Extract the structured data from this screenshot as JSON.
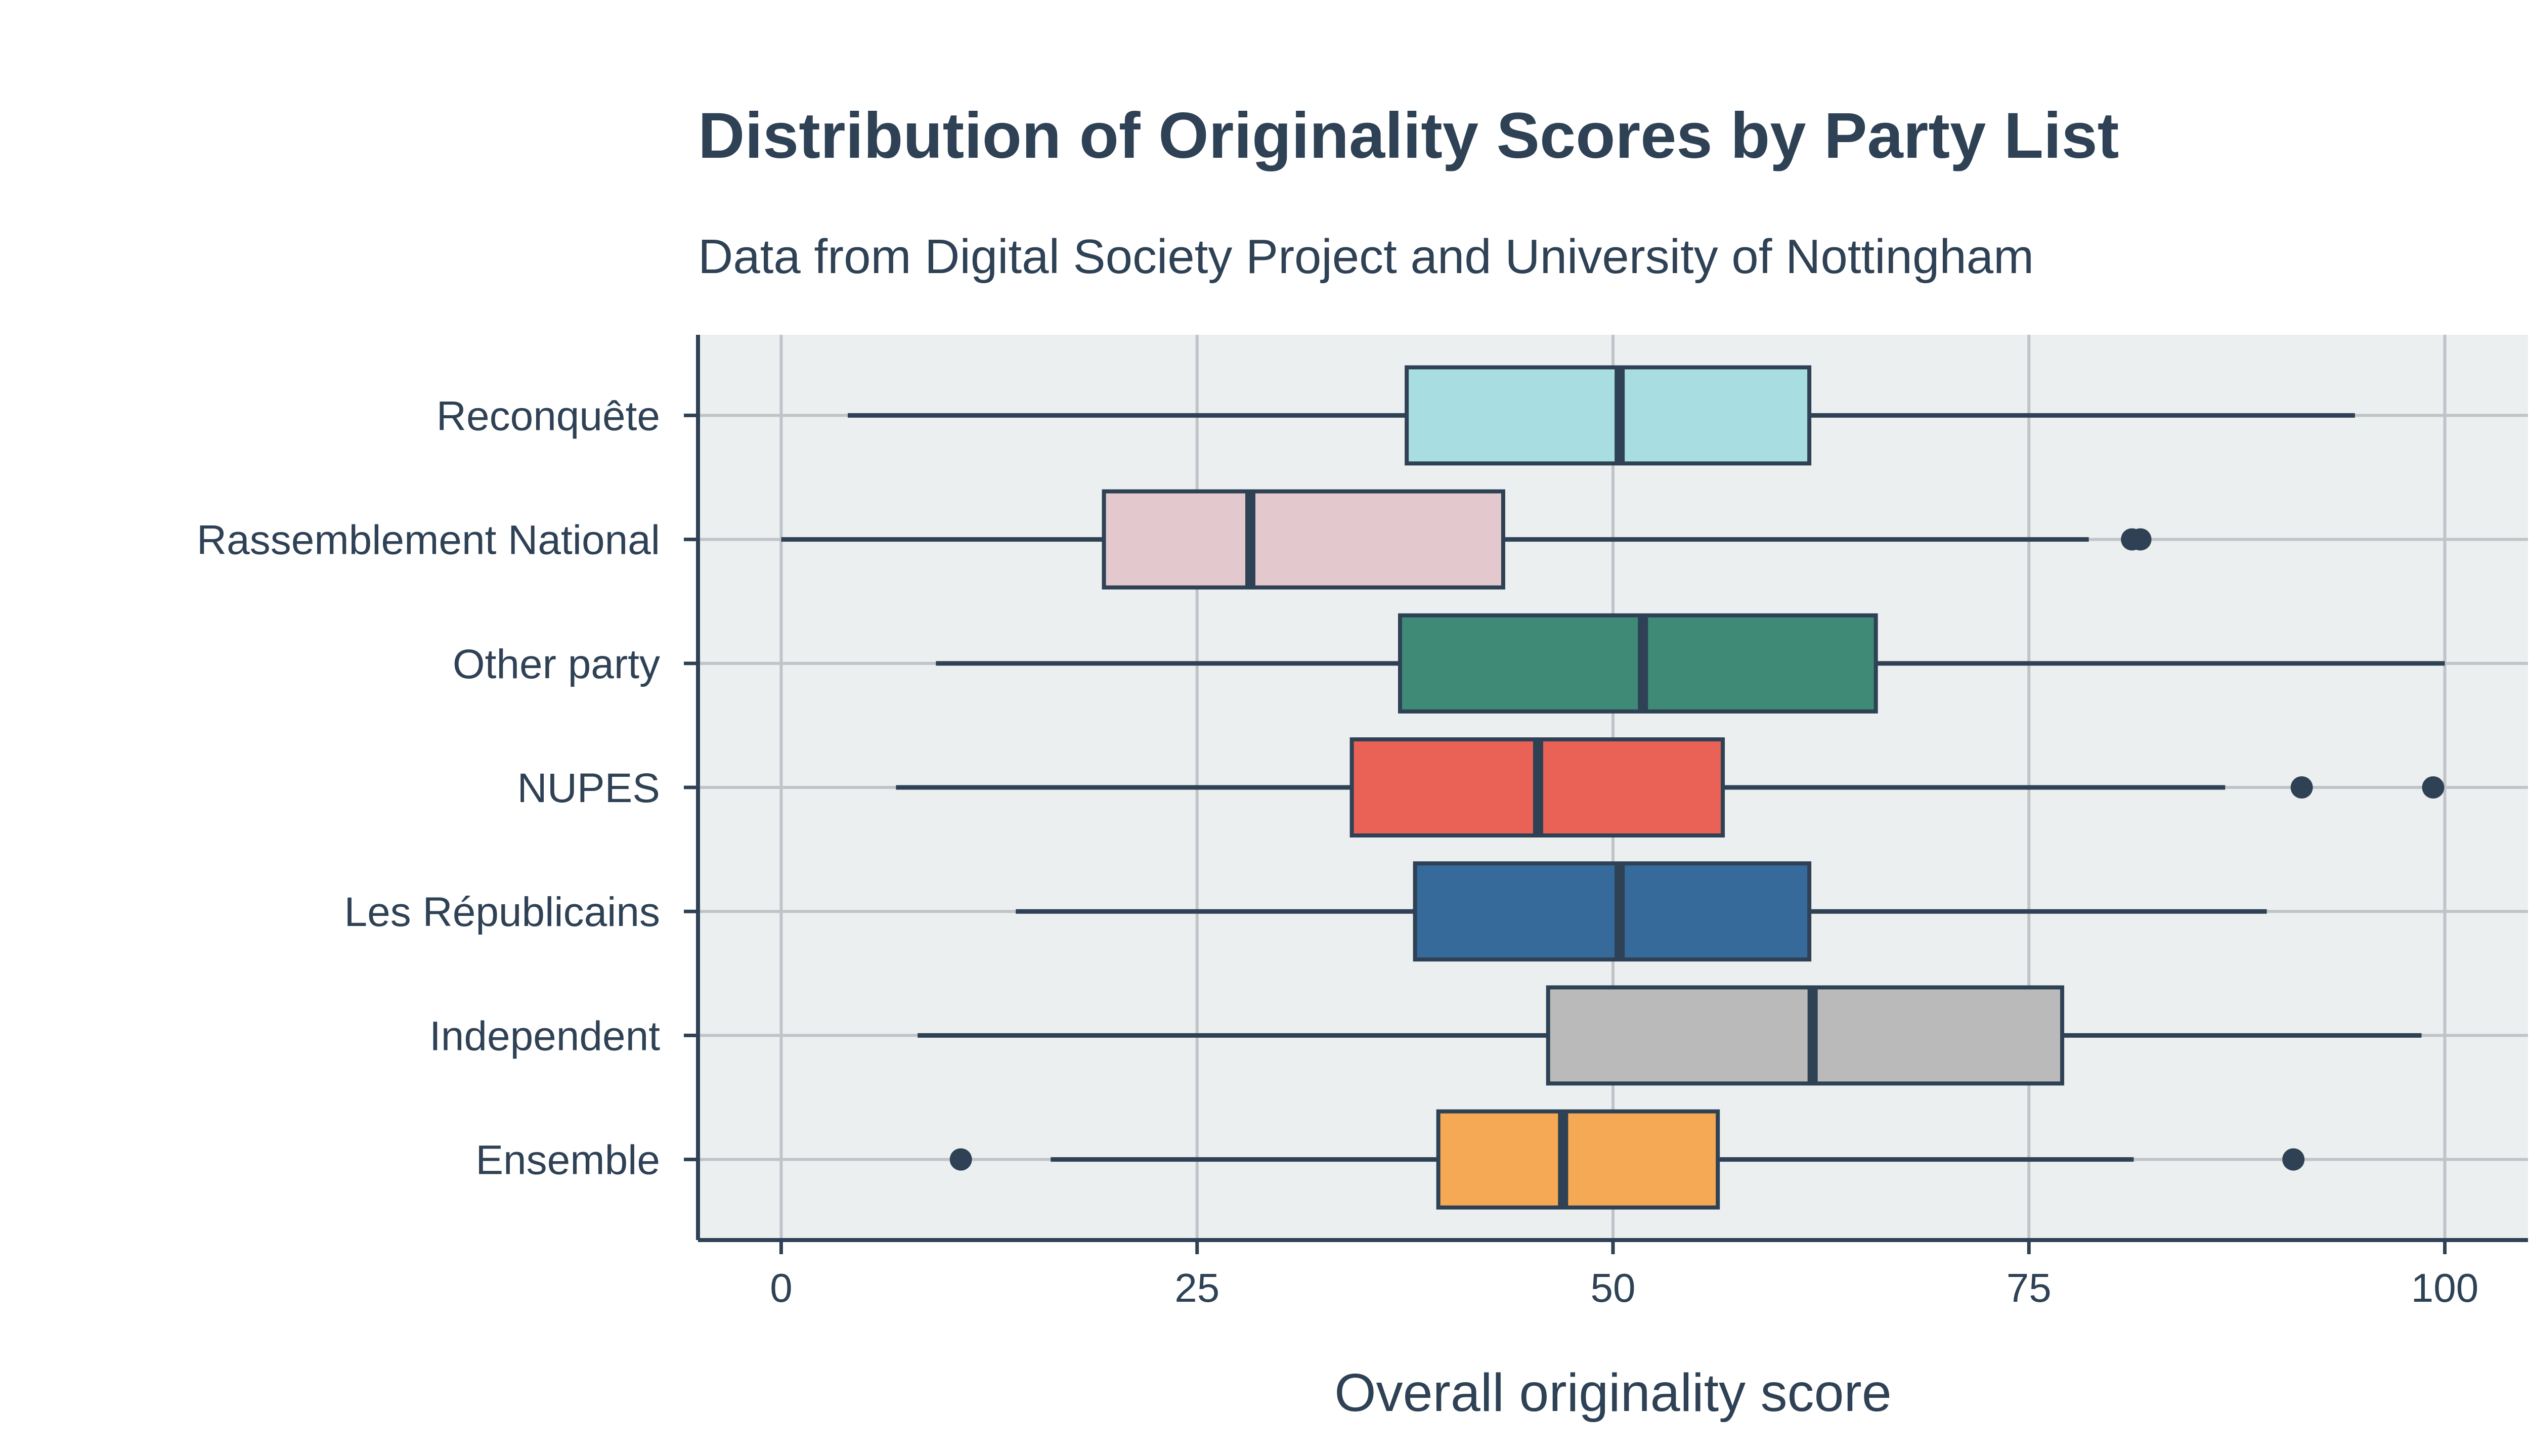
{
  "chart_data": {
    "type": "boxplot",
    "title": "Distribution of Originality Scores by Party List",
    "subtitle": "Data from Digital Society Project and University of Nottingham",
    "xlabel": "Overall originality score",
    "ylabel": "",
    "xlim": [
      -5,
      105
    ],
    "xticks": [
      0,
      25,
      50,
      75,
      100
    ],
    "grid": true,
    "background_color": "#ebeff0",
    "line_color": "#2e4155",
    "series": [
      {
        "category": "Reconquête",
        "color": "#a8dde1",
        "whisker_low": 4,
        "q1": 37.6,
        "median": 50.4,
        "q3": 61.8,
        "whisker_high": 94.6,
        "outliers": []
      },
      {
        "category": "Rassemblement National",
        "color": "#e3c9ce",
        "whisker_low": 0,
        "q1": 19.4,
        "median": 28.2,
        "q3": 43.4,
        "whisker_high": 78.6,
        "outliers": [
          81.2,
          81.7
        ]
      },
      {
        "category": "Other party",
        "color": "#3f8a76",
        "whisker_low": 9.3,
        "q1": 37.2,
        "median": 51.8,
        "q3": 65.8,
        "whisker_high": 100,
        "outliers": []
      },
      {
        "category": "NUPES",
        "color": "#e96255",
        "whisker_low": 6.9,
        "q1": 34.3,
        "median": 45.5,
        "q3": 56.6,
        "whisker_high": 86.8,
        "outliers": [
          91.4,
          99.3
        ]
      },
      {
        "category": "Les Républicains",
        "color": "#366a9b",
        "whisker_low": 14.1,
        "q1": 38.1,
        "median": 50.4,
        "q3": 61.8,
        "whisker_high": 89.3,
        "outliers": []
      },
      {
        "category": "Independent",
        "color": "#bababa",
        "whisker_low": 8.2,
        "q1": 46.1,
        "median": 62.0,
        "q3": 77.0,
        "whisker_high": 98.6,
        "outliers": []
      },
      {
        "category": "Ensemble",
        "color": "#f6a955",
        "whisker_low": 16.2,
        "q1": 39.5,
        "median": 47.0,
        "q3": 56.3,
        "whisker_high": 81.3,
        "outliers": [
          10.8,
          90.9
        ]
      }
    ]
  }
}
